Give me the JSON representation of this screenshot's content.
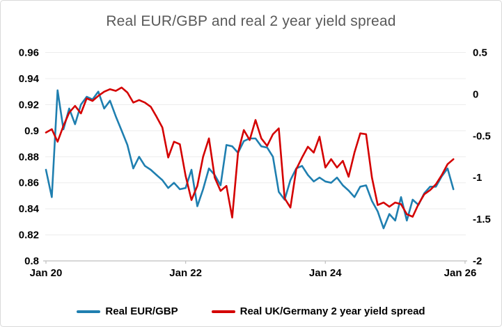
{
  "chart_data": {
    "type": "line",
    "title": "Real EUR/GBP and real 2 year yield spread",
    "x": [
      "2020-01",
      "2020-02",
      "2020-03",
      "2020-04",
      "2020-05",
      "2020-06",
      "2020-07",
      "2020-08",
      "2020-09",
      "2020-10",
      "2020-11",
      "2020-12",
      "2021-01",
      "2021-02",
      "2021-03",
      "2021-04",
      "2021-05",
      "2021-06",
      "2021-07",
      "2021-08",
      "2021-09",
      "2021-10",
      "2021-11",
      "2021-12",
      "2022-01",
      "2022-02",
      "2022-03",
      "2022-04",
      "2022-05",
      "2022-06",
      "2022-07",
      "2022-08",
      "2022-09",
      "2022-10",
      "2022-11",
      "2022-12",
      "2023-01",
      "2023-02",
      "2023-03",
      "2023-04",
      "2023-05",
      "2023-06",
      "2023-07",
      "2023-08",
      "2023-09",
      "2023-10",
      "2023-11",
      "2023-12",
      "2024-01",
      "2024-02",
      "2024-03",
      "2024-04",
      "2024-05",
      "2024-06",
      "2024-07",
      "2024-08",
      "2024-09",
      "2024-10",
      "2024-11",
      "2024-12",
      "2025-01",
      "2025-02",
      "2025-03",
      "2025-04",
      "2025-05",
      "2025-06",
      "2025-07",
      "2025-08",
      "2025-09",
      "2025-10",
      "2025-11"
    ],
    "x_tick_labels": [
      "Jan 20",
      "Jan 22",
      "Jan 24",
      "Jan 26"
    ],
    "x_tick_month_indices": [
      0,
      24,
      48,
      72
    ],
    "left_axis": {
      "max": 0.96,
      "min": 0.8,
      "ticks": [
        0.96,
        0.94,
        0.92,
        0.9,
        0.88,
        0.86,
        0.84,
        0.82,
        0.8
      ],
      "tick_labels": [
        "0.96",
        "0.94",
        "0.92",
        "0.9",
        "0.88",
        "0.86",
        "0.84",
        "0.82",
        "0.8"
      ]
    },
    "right_axis": {
      "max": 0.5,
      "min": -2,
      "ticks": [
        0.5,
        0,
        -0.5,
        -1,
        -1.5,
        -2
      ],
      "tick_labels": [
        "0.5",
        "0",
        "-0.5",
        "-1",
        "-1.5",
        "-2"
      ]
    },
    "grid": true,
    "legend_position": "bottom",
    "series": [
      {
        "name": "Real EUR/GBP",
        "axis": "left",
        "color": "#1f7fb0",
        "values": [
          0.87,
          0.849,
          0.931,
          0.901,
          0.917,
          0.905,
          0.92,
          0.926,
          0.924,
          0.93,
          0.917,
          0.923,
          0.911,
          0.9,
          0.889,
          0.871,
          0.88,
          0.873,
          0.87,
          0.866,
          0.862,
          0.856,
          0.86,
          0.855,
          0.856,
          0.87,
          0.842,
          0.855,
          0.871,
          0.866,
          0.858,
          0.889,
          0.888,
          0.883,
          0.892,
          0.894,
          0.894,
          0.888,
          0.887,
          0.88,
          0.853,
          0.847,
          0.862,
          0.871,
          0.873,
          0.866,
          0.861,
          0.864,
          0.861,
          0.86,
          0.864,
          0.858,
          0.854,
          0.849,
          0.857,
          0.858,
          0.846,
          0.838,
          0.825,
          0.836,
          0.831,
          0.849,
          0.831,
          0.847,
          0.843,
          0.852,
          0.857,
          0.857,
          0.865,
          0.871,
          0.855
        ]
      },
      {
        "name": "Real UK/Germany 2 year yield spread",
        "axis": "right",
        "color": "#d40000",
        "values": [
          -0.46,
          -0.42,
          -0.57,
          -0.38,
          -0.22,
          -0.14,
          -0.23,
          -0.05,
          -0.08,
          -0.02,
          0.03,
          0.06,
          0.04,
          0.08,
          0.02,
          -0.1,
          -0.07,
          -0.1,
          -0.15,
          -0.27,
          -0.4,
          -0.76,
          -0.57,
          -0.6,
          -0.98,
          -1.27,
          -1.1,
          -0.75,
          -0.53,
          -1.0,
          -1.16,
          -1.1,
          -1.48,
          -0.7,
          -0.43,
          -0.55,
          -0.31,
          -0.53,
          -0.62,
          -0.48,
          -0.41,
          -1.25,
          -1.36,
          -0.9,
          -0.76,
          -0.63,
          -0.7,
          -0.51,
          -0.88,
          -0.78,
          -0.88,
          -0.8,
          -0.99,
          -0.7,
          -0.47,
          -0.48,
          -1.0,
          -1.33,
          -1.3,
          -1.35,
          -1.3,
          -1.32,
          -1.44,
          -1.47,
          -1.32,
          -1.2,
          -1.15,
          -1.08,
          -0.97,
          -0.84,
          -0.78
        ]
      }
    ]
  },
  "styles": {
    "title_color": "#595959",
    "axis_label_color": "#000000",
    "gridline_color": "#ececec",
    "axis_line_color": "#bfbfbf",
    "background": "#ffffff",
    "border_color": "#d9d9d9"
  }
}
